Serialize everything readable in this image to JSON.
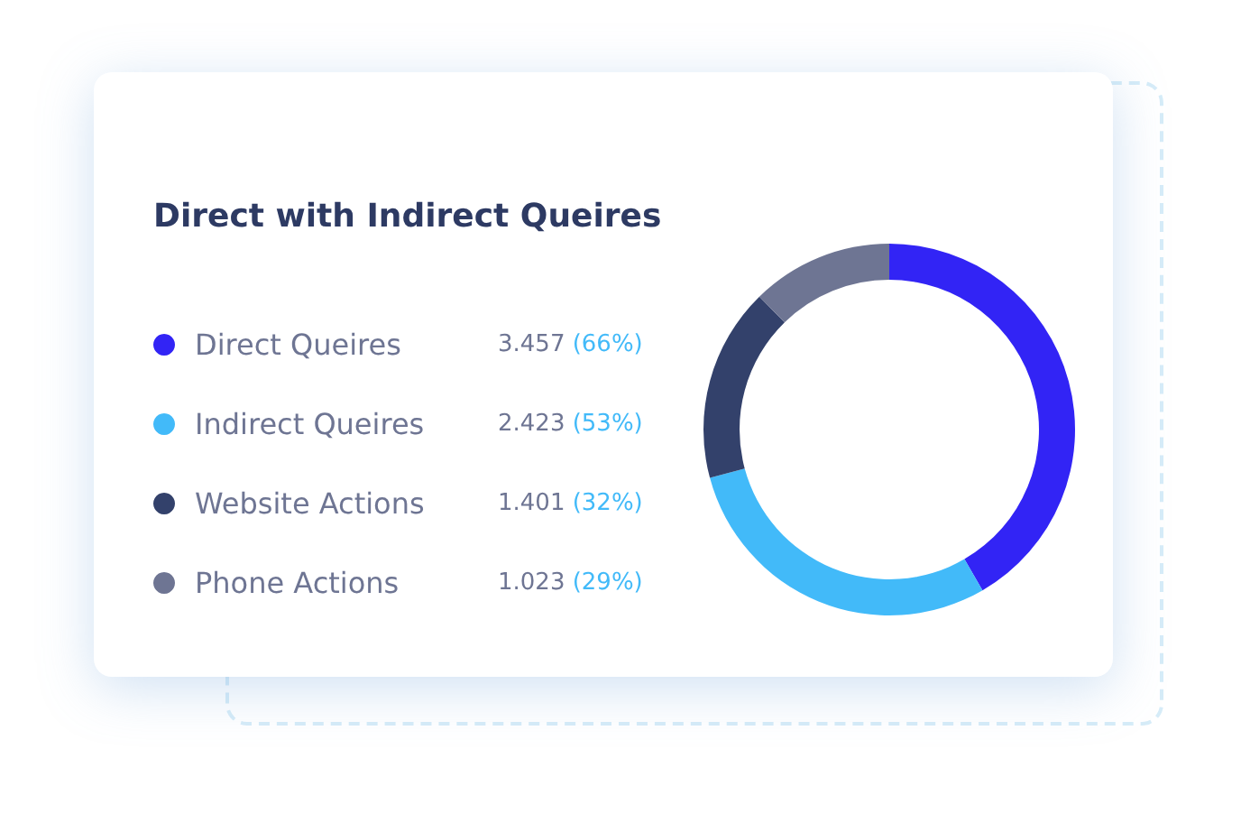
{
  "chart_data": {
    "type": "donut",
    "title": "Direct with Indirect Queires",
    "categories": [
      "Direct Queires",
      "Indirect Queires",
      "Website Actions",
      "Phone Actions"
    ],
    "values": [
      3.457,
      2.423,
      1.401,
      1.023
    ],
    "colors": [
      "#3224f5",
      "#42baf9",
      "#33416b",
      "#6e7593"
    ],
    "value_labels": [
      "3.457 (66%)",
      "2.423 (53%)",
      "1.401 (32%)",
      "1.023 (29%)"
    ],
    "legend": "left"
  }
}
